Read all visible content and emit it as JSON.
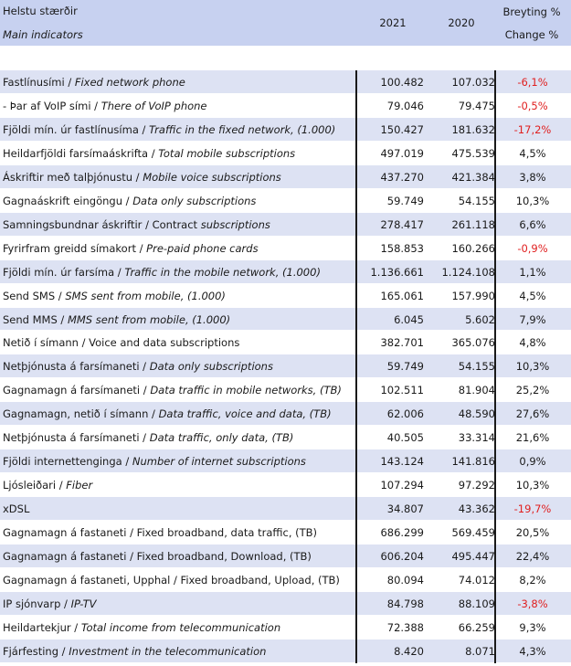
{
  "header": {
    "title_is": "Helstu stærðir",
    "title_en": "Main indicators",
    "col_2021": "2021",
    "col_2020": "2020",
    "change_is": "Breyting %",
    "change_en": "Change %"
  },
  "rows": [
    {
      "is": "Fastlínusími / ",
      "en": "Fixed network phone",
      "v2021": "100.482",
      "v2020": "107.032",
      "change": "-6,1%",
      "negative": true
    },
    {
      "is": " - Þar af VoIP sími / ",
      "en": "There of VoIP phone",
      "v2021": "79.046",
      "v2020": "79.475",
      "change": "-0,5%",
      "negative": true
    },
    {
      "is": "Fjöldi mín. úr fastlínusíma / ",
      "en": "Traffic in the fixed network, (1.000)",
      "v2021": "150.427",
      "v2020": "181.632",
      "change": "-17,2%",
      "negative": true
    },
    {
      "is": "Heildarfjöldi farsímaáskrifta / ",
      "en": "Total mobile subscriptions",
      "v2021": "497.019",
      "v2020": "475.539",
      "change": "4,5%",
      "negative": false
    },
    {
      "is": "Áskriftir með talþjónustu / ",
      "en": "Mobile voice subscriptions",
      "v2021": "437.270",
      "v2020": "421.384",
      "change": "3,8%",
      "negative": false
    },
    {
      "is": "Gagnaáskrift eingöngu / ",
      "en": "Data only subscriptions",
      "v2021": "59.749",
      "v2020": "54.155",
      "change": "10,3%",
      "negative": false
    },
    {
      "is": "Samningsbundnar áskriftir / Contract ",
      "en": "subscriptions",
      "v2021": "278.417",
      "v2020": "261.118",
      "change": "6,6%",
      "negative": false
    },
    {
      "is": "Fyrirfram greidd símakort / ",
      "en": "Pre-paid phone cards",
      "v2021": "158.853",
      "v2020": "160.266",
      "change": "-0,9%",
      "negative": true
    },
    {
      "is": "Fjöldi mín. úr farsíma / ",
      "en": "Traffic in the mobile network, (1.000)",
      "v2021": "1.136.661",
      "v2020": "1.124.108",
      "change": "1,1%",
      "negative": false
    },
    {
      "is": "Send SMS / ",
      "en": "SMS sent from mobile, (1.000)",
      "v2021": "165.061",
      "v2020": "157.990",
      "change": "4,5%",
      "negative": false
    },
    {
      "is": "Send MMS / ",
      "en": "MMS sent from mobile, (1.000)",
      "v2021": "6.045",
      "v2020": "5.602",
      "change": "7,9%",
      "negative": false
    },
    {
      "is": "Netið í símann / Voice and data subscriptions",
      "en": "",
      "v2021": "382.701",
      "v2020": "365.076",
      "change": "4,8%",
      "negative": false
    },
    {
      "is": "Netþjónusta á farsímaneti / ",
      "en": "Data only subscriptions",
      "v2021": "59.749",
      "v2020": "54.155",
      "change": "10,3%",
      "negative": false
    },
    {
      "is": "Gagnamagn á farsímaneti / ",
      "en": "Data traffic in mobile networks, (TB)",
      "v2021": "102.511",
      "v2020": "81.904",
      "change": "25,2%",
      "negative": false
    },
    {
      "is": "Gagnamagn, netið í símann / ",
      "en": "Data traffic, voice and data, (TB)",
      "v2021": "62.006",
      "v2020": "48.590",
      "change": "27,6%",
      "negative": false
    },
    {
      "is": "Netþjónusta á farsímaneti / ",
      "en": "Data traffic, only data, (TB)",
      "v2021": "40.505",
      "v2020": "33.314",
      "change": "21,6%",
      "negative": false
    },
    {
      "is": "Fjöldi internettenginga / ",
      "en": "Number of internet subscriptions",
      "v2021": "143.124",
      "v2020": "141.816",
      "change": "0,9%",
      "negative": false
    },
    {
      "is": "Ljósleiðari / ",
      "en": "Fiber",
      "v2021": "107.294",
      "v2020": "97.292",
      "change": "10,3%",
      "negative": false
    },
    {
      "is": "xDSL",
      "en": "",
      "v2021": "34.807",
      "v2020": "43.362",
      "change": "-19,7%",
      "negative": true
    },
    {
      "is": "Gagnamagn á fastaneti / Fixed broadband, data traffic, (TB)",
      "en": "",
      "v2021": "686.299",
      "v2020": "569.459",
      "change": "20,5%",
      "negative": false
    },
    {
      "is": "Gagnamagn á fastaneti / Fixed broadband, Download, (TB)",
      "en": "",
      "v2021": "606.204",
      "v2020": "495.447",
      "change": "22,4%",
      "negative": false
    },
    {
      "is": "Gagnamagn á fastaneti, Upphal / Fixed broadband, Upload, (TB)",
      "en": "",
      "v2021": "80.094",
      "v2020": "74.012",
      "change": "8,2%",
      "negative": false
    },
    {
      "is": "IP sjónvarp / ",
      "en": "IP-TV",
      "v2021": "84.798",
      "v2020": "88.109",
      "change": "-3,8%",
      "negative": true
    },
    {
      "is": "Heildartekjur / ",
      "en": "Total income from telecommunication",
      "v2021": "72.388",
      "v2020": "66.259",
      "change": "9,3%",
      "negative": false
    },
    {
      "is": "Fjárfesting / ",
      "en": "Investment in the telecommunication",
      "v2021": "8.420",
      "v2020": "8.071",
      "change": "4,3%",
      "negative": false
    }
  ]
}
